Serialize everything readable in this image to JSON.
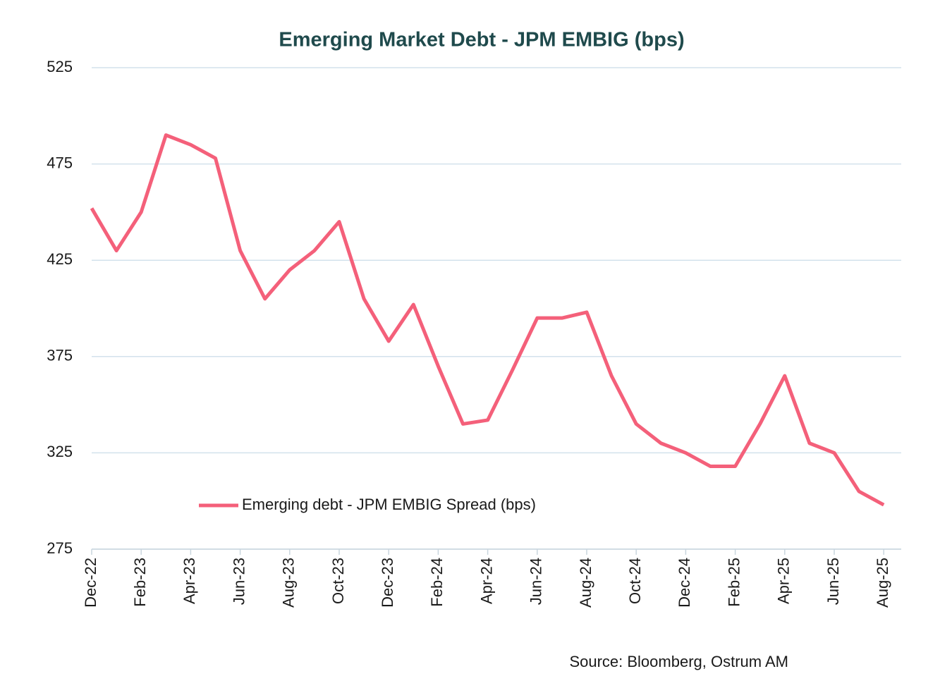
{
  "chart_data": {
    "type": "line",
    "title": "Emerging Market Debt - JPM EMBIG (bps)",
    "source": "Source: Bloomberg, Ostrum AM",
    "x": [
      "Dec-22",
      "Jan-23",
      "Feb-23",
      "Mar-23",
      "Apr-23",
      "May-23",
      "Jun-23",
      "Jul-23",
      "Aug-23",
      "Sep-23",
      "Oct-23",
      "Nov-23",
      "Dec-23",
      "Jan-24",
      "Feb-24",
      "Mar-24",
      "Apr-24",
      "May-24",
      "Jun-24",
      "Jul-24",
      "Aug-24",
      "Sep-24",
      "Oct-24",
      "Nov-24",
      "Dec-24",
      "Jan-25",
      "Feb-25",
      "Mar-25",
      "Apr-25",
      "May-25",
      "Jun-25",
      "Jul-25",
      "Aug-25"
    ],
    "xticks": [
      "Dec-22",
      "Feb-23",
      "Apr-23",
      "Jun-23",
      "Aug-23",
      "Oct-23",
      "Dec-23",
      "Feb-24",
      "Apr-24",
      "Jun-24",
      "Aug-24",
      "Oct-24",
      "Dec-24",
      "Feb-25",
      "Apr-25",
      "Jun-25",
      "Aug-25"
    ],
    "series": [
      {
        "name": "Emerging debt - JPM EMBIG Spread  (bps)",
        "color": "#f4607a",
        "values": [
          452,
          430,
          450,
          490,
          485,
          478,
          430,
          405,
          420,
          430,
          445,
          405,
          383,
          402,
          370,
          340,
          342,
          368,
          395,
          395,
          398,
          365,
          340,
          330,
          325,
          318,
          318,
          340,
          365,
          330,
          325,
          305,
          298
        ]
      }
    ],
    "ylim": [
      275,
      525
    ],
    "yticks": [
      275,
      325,
      375,
      425,
      475,
      525
    ],
    "grid": true
  }
}
